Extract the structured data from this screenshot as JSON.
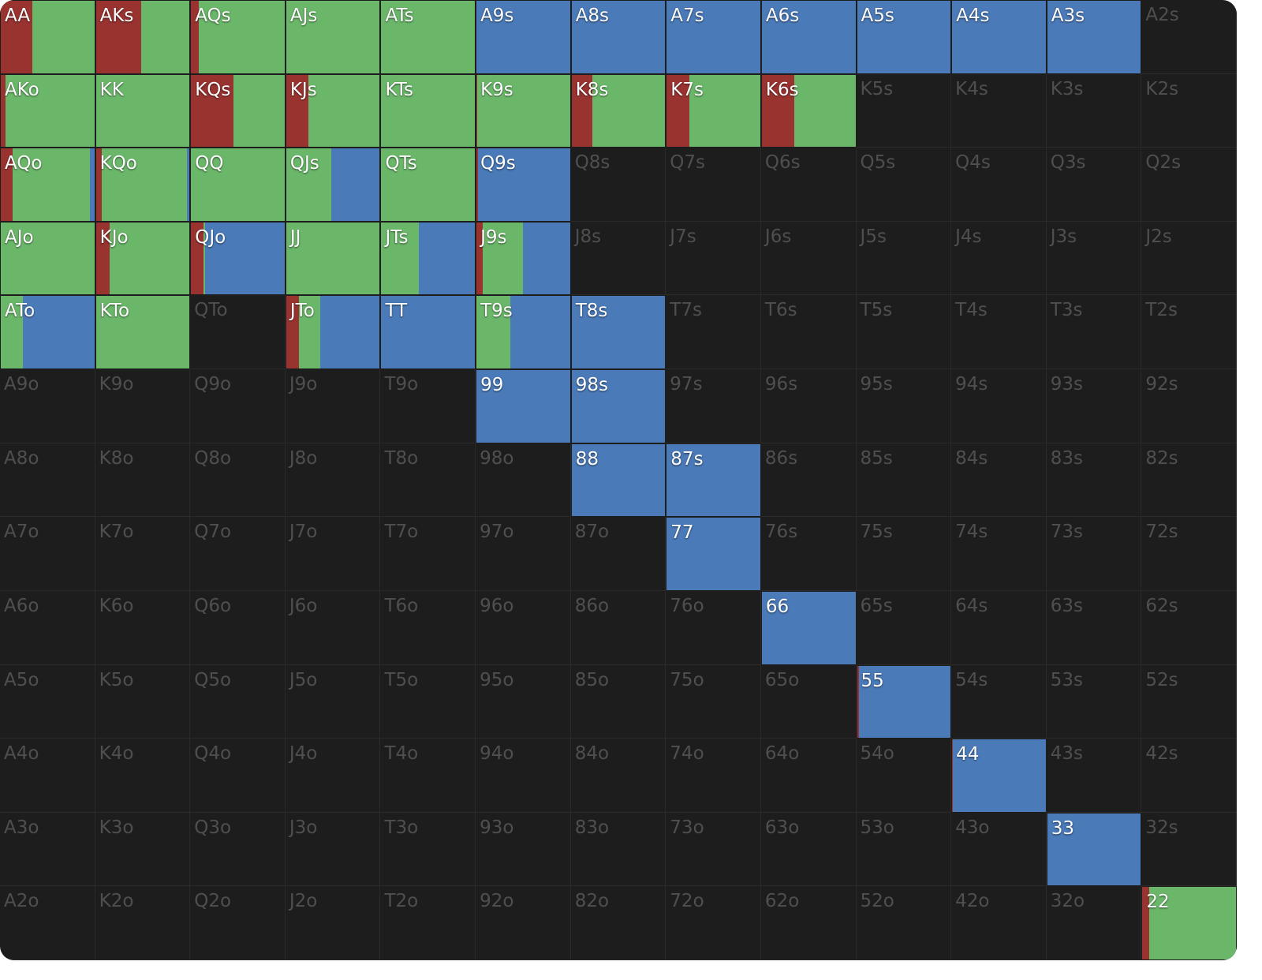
{
  "colors": [
    "#993330",
    "#6bb76a",
    "#4a7ab8"
  ],
  "rows": [
    [
      {
        "label": "AA",
        "mix": [
          34,
          66,
          0
        ]
      },
      {
        "label": "AKs",
        "mix": [
          48,
          52,
          0
        ]
      },
      {
        "label": "AQs",
        "mix": [
          8,
          92,
          0
        ]
      },
      {
        "label": "AJs",
        "mix": [
          0,
          100,
          0
        ]
      },
      {
        "label": "ATs",
        "mix": [
          0,
          100,
          0
        ]
      },
      {
        "label": "A9s",
        "mix": [
          0,
          0,
          100
        ]
      },
      {
        "label": "A8s",
        "mix": [
          0,
          0,
          100
        ]
      },
      {
        "label": "A7s",
        "mix": [
          0,
          0,
          100
        ]
      },
      {
        "label": "A6s",
        "mix": [
          0,
          0,
          100
        ]
      },
      {
        "label": "A5s",
        "mix": [
          0,
          0,
          100
        ]
      },
      {
        "label": "A4s",
        "mix": [
          0,
          0,
          100
        ]
      },
      {
        "label": "A3s",
        "mix": [
          0,
          0,
          100
        ]
      },
      {
        "label": "A2s"
      }
    ],
    [
      {
        "label": "AKo",
        "mix": [
          5,
          95,
          0
        ]
      },
      {
        "label": "KK",
        "mix": [
          0,
          100,
          0
        ]
      },
      {
        "label": "KQs",
        "mix": [
          45,
          55,
          0
        ]
      },
      {
        "label": "KJs",
        "mix": [
          24,
          76,
          0
        ]
      },
      {
        "label": "KTs",
        "mix": [
          0,
          100,
          0
        ]
      },
      {
        "label": "K9s",
        "mix": [
          1,
          99,
          0
        ]
      },
      {
        "label": "K8s",
        "mix": [
          22,
          78,
          0
        ]
      },
      {
        "label": "K7s",
        "mix": [
          24,
          76,
          0
        ]
      },
      {
        "label": "K6s",
        "mix": [
          35,
          65,
          0
        ]
      },
      {
        "label": "K5s"
      },
      {
        "label": "K4s"
      },
      {
        "label": "K3s"
      },
      {
        "label": "K2s"
      }
    ],
    [
      {
        "label": "AQo",
        "mix": [
          13,
          82,
          5
        ]
      },
      {
        "label": "KQo",
        "mix": [
          6,
          91,
          3
        ]
      },
      {
        "label": "QQ",
        "mix": [
          0,
          100,
          0
        ]
      },
      {
        "label": "QJs",
        "mix": [
          0,
          48,
          52
        ]
      },
      {
        "label": "QTs",
        "mix": [
          0,
          100,
          0
        ]
      },
      {
        "label": "Q9s",
        "mix": [
          2,
          0,
          98
        ]
      },
      {
        "label": "Q8s"
      },
      {
        "label": "Q7s"
      },
      {
        "label": "Q6s"
      },
      {
        "label": "Q5s"
      },
      {
        "label": "Q4s"
      },
      {
        "label": "Q3s"
      },
      {
        "label": "Q2s"
      }
    ],
    [
      {
        "label": "AJo",
        "mix": [
          0,
          100,
          0
        ]
      },
      {
        "label": "KJo",
        "mix": [
          15,
          85,
          0
        ]
      },
      {
        "label": "QJo",
        "mix": [
          13,
          2,
          85
        ]
      },
      {
        "label": "JJ",
        "mix": [
          0,
          100,
          0
        ]
      },
      {
        "label": "JTs",
        "mix": [
          0,
          40,
          60
        ]
      },
      {
        "label": "J9s",
        "mix": [
          7,
          43,
          50
        ]
      },
      {
        "label": "J8s"
      },
      {
        "label": "J7s"
      },
      {
        "label": "J6s"
      },
      {
        "label": "J5s"
      },
      {
        "label": "J4s"
      },
      {
        "label": "J3s"
      },
      {
        "label": "J2s"
      }
    ],
    [
      {
        "label": "ATo",
        "mix": [
          0,
          24,
          76
        ]
      },
      {
        "label": "KTo",
        "mix": [
          0,
          100,
          0
        ]
      },
      {
        "label": "QTo"
      },
      {
        "label": "JTo",
        "mix": [
          14,
          22,
          64
        ]
      },
      {
        "label": "TT",
        "mix": [
          0,
          0,
          100
        ]
      },
      {
        "label": "T9s",
        "mix": [
          0,
          36,
          64
        ]
      },
      {
        "label": "T8s",
        "mix": [
          0,
          0,
          100
        ]
      },
      {
        "label": "T7s"
      },
      {
        "label": "T6s"
      },
      {
        "label": "T5s"
      },
      {
        "label": "T4s"
      },
      {
        "label": "T3s"
      },
      {
        "label": "T2s"
      }
    ],
    [
      {
        "label": "A9o"
      },
      {
        "label": "K9o"
      },
      {
        "label": "Q9o"
      },
      {
        "label": "J9o"
      },
      {
        "label": "T9o"
      },
      {
        "label": "99",
        "mix": [
          0,
          0,
          100
        ]
      },
      {
        "label": "98s",
        "mix": [
          0,
          0,
          100
        ]
      },
      {
        "label": "97s"
      },
      {
        "label": "96s"
      },
      {
        "label": "95s"
      },
      {
        "label": "94s"
      },
      {
        "label": "93s"
      },
      {
        "label": "92s"
      }
    ],
    [
      {
        "label": "A8o"
      },
      {
        "label": "K8o"
      },
      {
        "label": "Q8o"
      },
      {
        "label": "J8o"
      },
      {
        "label": "T8o"
      },
      {
        "label": "98o"
      },
      {
        "label": "88",
        "mix": [
          0,
          0,
          100
        ]
      },
      {
        "label": "87s",
        "mix": [
          0,
          0,
          100
        ]
      },
      {
        "label": "86s"
      },
      {
        "label": "85s"
      },
      {
        "label": "84s"
      },
      {
        "label": "83s"
      },
      {
        "label": "82s"
      }
    ],
    [
      {
        "label": "A7o"
      },
      {
        "label": "K7o"
      },
      {
        "label": "Q7o"
      },
      {
        "label": "J7o"
      },
      {
        "label": "T7o"
      },
      {
        "label": "97o"
      },
      {
        "label": "87o"
      },
      {
        "label": "77",
        "mix": [
          0,
          0,
          100
        ]
      },
      {
        "label": "76s"
      },
      {
        "label": "75s"
      },
      {
        "label": "74s"
      },
      {
        "label": "73s"
      },
      {
        "label": "72s"
      }
    ],
    [
      {
        "label": "A6o"
      },
      {
        "label": "K6o"
      },
      {
        "label": "Q6o"
      },
      {
        "label": "J6o"
      },
      {
        "label": "T6o"
      },
      {
        "label": "96o"
      },
      {
        "label": "86o"
      },
      {
        "label": "76o"
      },
      {
        "label": "66",
        "mix": [
          0,
          0,
          100
        ]
      },
      {
        "label": "65s"
      },
      {
        "label": "64s"
      },
      {
        "label": "63s"
      },
      {
        "label": "62s"
      }
    ],
    [
      {
        "label": "A5o"
      },
      {
        "label": "K5o"
      },
      {
        "label": "Q5o"
      },
      {
        "label": "J5o"
      },
      {
        "label": "T5o"
      },
      {
        "label": "95o"
      },
      {
        "label": "85o"
      },
      {
        "label": "75o"
      },
      {
        "label": "65o"
      },
      {
        "label": "55",
        "mix": [
          2,
          0,
          98
        ]
      },
      {
        "label": "54s"
      },
      {
        "label": "53s"
      },
      {
        "label": "52s"
      }
    ],
    [
      {
        "label": "A4o"
      },
      {
        "label": "K4o"
      },
      {
        "label": "Q4o"
      },
      {
        "label": "J4o"
      },
      {
        "label": "T4o"
      },
      {
        "label": "94o"
      },
      {
        "label": "84o"
      },
      {
        "label": "74o"
      },
      {
        "label": "64o"
      },
      {
        "label": "54o"
      },
      {
        "label": "44",
        "mix": [
          1,
          0,
          99
        ]
      },
      {
        "label": "43s"
      },
      {
        "label": "42s"
      }
    ],
    [
      {
        "label": "A3o"
      },
      {
        "label": "K3o"
      },
      {
        "label": "Q3o"
      },
      {
        "label": "J3o"
      },
      {
        "label": "T3o"
      },
      {
        "label": "93o"
      },
      {
        "label": "83o"
      },
      {
        "label": "73o"
      },
      {
        "label": "63o"
      },
      {
        "label": "53o"
      },
      {
        "label": "43o"
      },
      {
        "label": "33",
        "mix": [
          0,
          0,
          100
        ]
      },
      {
        "label": "32s"
      }
    ],
    [
      {
        "label": "A2o"
      },
      {
        "label": "K2o"
      },
      {
        "label": "Q2o"
      },
      {
        "label": "J2o"
      },
      {
        "label": "T2o"
      },
      {
        "label": "92o"
      },
      {
        "label": "82o"
      },
      {
        "label": "72o"
      },
      {
        "label": "62o"
      },
      {
        "label": "52o"
      },
      {
        "label": "42o"
      },
      {
        "label": "32o"
      },
      {
        "label": "22",
        "mix": [
          7,
          93,
          0
        ]
      }
    ]
  ]
}
